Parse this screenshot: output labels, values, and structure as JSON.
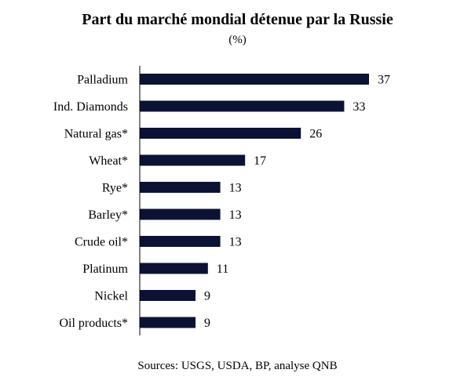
{
  "chart_data": {
    "type": "bar",
    "orientation": "horizontal",
    "title": "Part du marché mondial détenue par la Russie",
    "subtitle": "(%)",
    "categories": [
      "Palladium",
      "Ind. Diamonds",
      "Natural gas*",
      "Wheat*",
      "Rye*",
      "Barley*",
      "Crude oil*",
      "Platinum",
      "Nickel",
      "Oil products*"
    ],
    "values": [
      37,
      33,
      26,
      17,
      13,
      13,
      13,
      11,
      9,
      9
    ],
    "data_labels": [
      "37",
      "33",
      "26",
      "17",
      "13",
      "13",
      "13",
      "11",
      "9",
      "9"
    ],
    "xlim": [
      0,
      37
    ],
    "grid": false,
    "legend": "none",
    "bar_color": "#0b1234",
    "source": "Sources: USGS, USDA, BP, analyse QNB"
  }
}
